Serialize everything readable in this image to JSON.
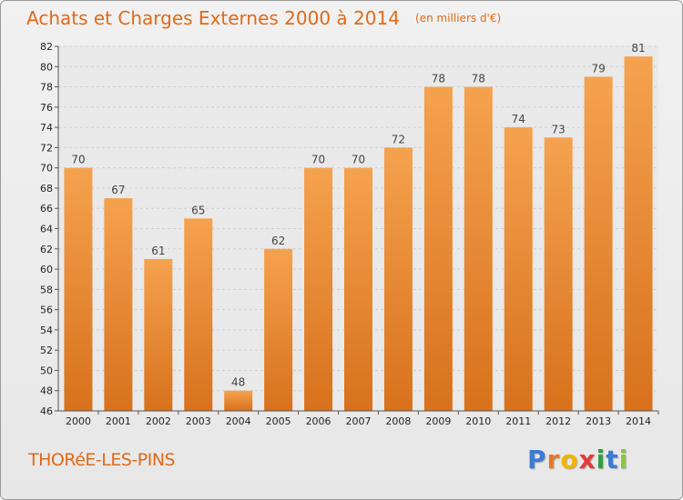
{
  "chart_data": {
    "type": "bar",
    "title": "Achats et Charges Externes 2000 à 2014",
    "subtitle": "(en milliers d'€)",
    "categories": [
      "2000",
      "2001",
      "2002",
      "2003",
      "2004",
      "2005",
      "2006",
      "2007",
      "2008",
      "2009",
      "2010",
      "2011",
      "2012",
      "2013",
      "2014"
    ],
    "values": [
      70,
      67,
      61,
      65,
      48,
      62,
      70,
      70,
      72,
      78,
      78,
      74,
      73,
      79,
      81
    ],
    "ylim": [
      46,
      82
    ],
    "yticks": [
      46,
      48,
      50,
      52,
      54,
      56,
      58,
      60,
      62,
      64,
      66,
      68,
      70,
      72,
      74,
      76,
      78,
      80,
      82
    ],
    "grid": true,
    "bar_color_top": "#f5a24e",
    "bar_color_bottom": "#d8711c"
  },
  "place_name": "THORéE-LES-PINS",
  "logo": {
    "letters": [
      "P",
      "r",
      "o",
      "x",
      "i",
      "t",
      "i"
    ],
    "colors": [
      "#3a7bd5",
      "#e8762a",
      "#f0b400",
      "#e23b3b",
      "#2f9e3f",
      "#3a7bd5",
      "#8cc63f"
    ]
  }
}
